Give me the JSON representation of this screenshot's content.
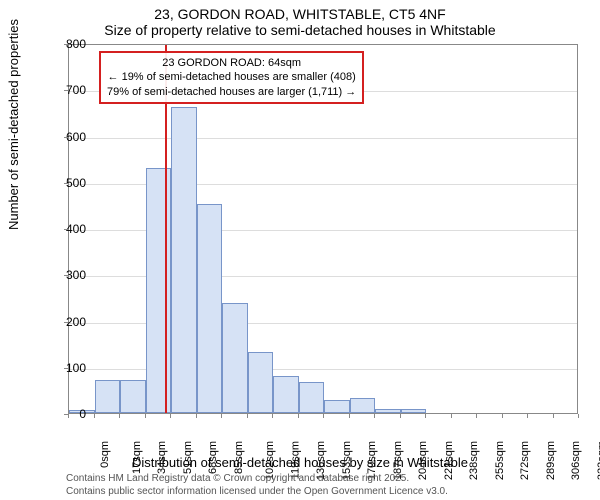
{
  "title": "23, GORDON ROAD, WHITSTABLE, CT5 4NF",
  "subtitle": "Size of property relative to semi-detached houses in Whitstable",
  "y_axis": {
    "label": "Number of semi-detached properties",
    "min": 0,
    "max": 800,
    "step": 100
  },
  "x_axis": {
    "label": "Distribution of semi-detached houses by size in Whitstable",
    "tick_step": 17,
    "tick_count": 21,
    "unit": "sqm"
  },
  "chart": {
    "bar_color": "#d6e2f5",
    "bar_border": "#7895c9",
    "background": "#ffffff",
    "grid_color": "#dddddd",
    "marker_color": "#d42020",
    "title_fontsize": 14,
    "label_fontsize": 13,
    "tick_fontsize": 12
  },
  "bars": {
    "bin_width": 17,
    "values": [
      6,
      72,
      72,
      530,
      662,
      452,
      238,
      132,
      80,
      68,
      28,
      32,
      8,
      8,
      0,
      0,
      0,
      0,
      0,
      0,
      0
    ]
  },
  "marker": {
    "x_value": 64,
    "label_prefix": "23 GORDON ROAD:",
    "label_value": "64sqm"
  },
  "annotation": {
    "line1": "23 GORDON ROAD: 64sqm",
    "line2": "← 19% of semi-detached houses are smaller (408)",
    "line3": "79% of semi-detached houses are larger (1,711) →"
  },
  "footer": {
    "line1": "Contains HM Land Registry data © Crown copyright and database right 2025.",
    "line2": "Contains public sector information licensed under the Open Government Licence v3.0."
  }
}
